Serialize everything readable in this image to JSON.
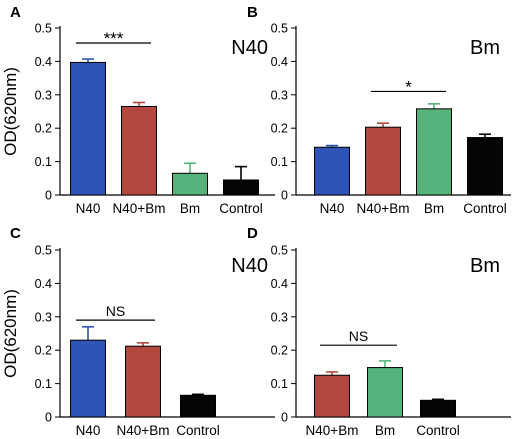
{
  "colors": {
    "N40": "#2f53b6",
    "N40+Bm": "#b4473e",
    "Bm": "#56b37c",
    "Control": "#050505"
  },
  "chart_data": [
    {
      "type": "bar",
      "panel_letter": "A",
      "title": "N40",
      "ylabel": "OD(620nm)",
      "ylim": [
        0,
        0.5
      ],
      "yticks": [
        "0",
        "0.1",
        "0.2",
        "0.3",
        "0.4",
        "0.5"
      ],
      "categories": [
        "N40",
        "N40+Bm",
        "Bm",
        "Control"
      ],
      "values": [
        0.397,
        0.265,
        0.065,
        0.045
      ],
      "errors": [
        0.01,
        0.012,
        0.03,
        0.04
      ],
      "significance": [
        {
          "label": "***",
          "from": 0,
          "to": 1,
          "y": 0.455
        }
      ]
    },
    {
      "type": "bar",
      "panel_letter": "B",
      "title": "Bm",
      "ylabel": "",
      "ylim": [
        0,
        0.5
      ],
      "yticks": [
        "0",
        "0.1",
        "0.2",
        "0.3",
        "0.4",
        "0.5"
      ],
      "categories": [
        "N40",
        "N40+Bm",
        "Bm",
        "Control"
      ],
      "values": [
        0.143,
        0.203,
        0.258,
        0.172
      ],
      "errors": [
        0.005,
        0.012,
        0.015,
        0.01
      ],
      "significance": [
        {
          "label": "*",
          "from": 1,
          "to": 2,
          "y": 0.31
        }
      ]
    },
    {
      "type": "bar",
      "panel_letter": "C",
      "title": "N40",
      "ylabel": "OD(620nm)",
      "ylim": [
        0,
        0.5
      ],
      "yticks": [
        "0",
        "0.1",
        "0.2",
        "0.3",
        "0.4",
        "0.5"
      ],
      "categories": [
        "N40",
        "N40+Bm",
        "Control"
      ],
      "values": [
        0.23,
        0.212,
        0.065
      ],
      "errors": [
        0.04,
        0.01,
        0.003
      ],
      "significance": [
        {
          "label": "NS",
          "from": 0,
          "to": 1,
          "y": 0.29
        }
      ]
    },
    {
      "type": "bar",
      "panel_letter": "D",
      "title": "Bm",
      "ylabel": "",
      "ylim": [
        0,
        0.5
      ],
      "yticks": [
        "0",
        "0.1",
        "0.2",
        "0.3",
        "0.4",
        "0.5"
      ],
      "categories": [
        "N40+Bm",
        "Bm",
        "Control"
      ],
      "values": [
        0.125,
        0.148,
        0.05
      ],
      "errors": [
        0.01,
        0.02,
        0.003
      ],
      "significance": [
        {
          "label": "NS",
          "from": 0,
          "to": 1,
          "y": 0.215
        }
      ]
    }
  ]
}
